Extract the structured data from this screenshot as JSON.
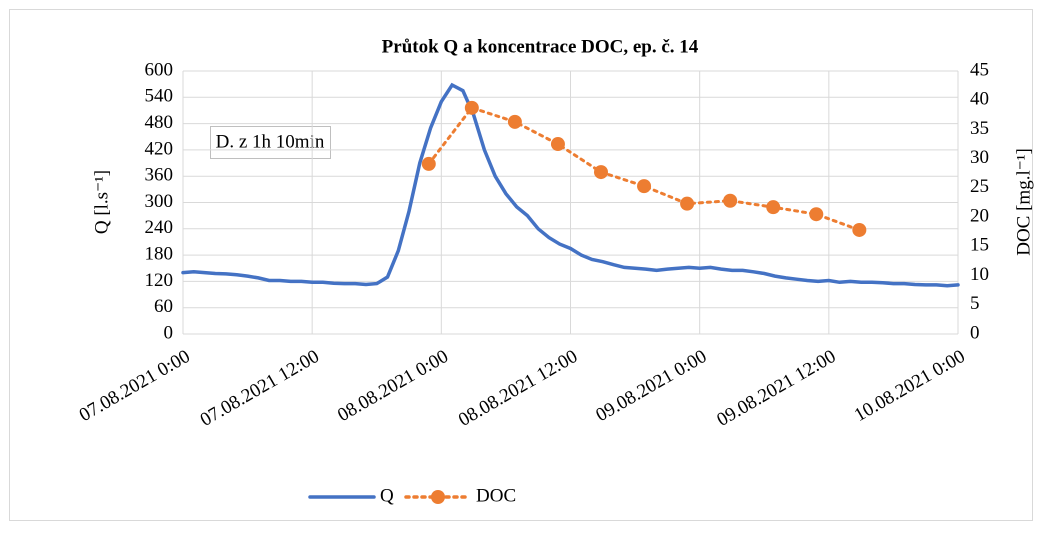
{
  "chart_data": {
    "type": "line",
    "title": "Průtok Q a koncentrace DOC, ep. č. 14",
    "annotation": "D. z 1h 10min",
    "y_label": "Q [l.s⁻¹]",
    "y2_label": "DOC [mg.l⁻¹]",
    "xlim": [
      "2021-08-07T00:00",
      "2021-08-10T00:00"
    ],
    "xticks": [
      {
        "value": "2021-08-07T00:00",
        "label": "07.08.2021 0:00"
      },
      {
        "value": "2021-08-07T12:00",
        "label": "07.08.2021 12:00"
      },
      {
        "value": "2021-08-08T00:00",
        "label": "08.08.2021 0:00"
      },
      {
        "value": "2021-08-08T12:00",
        "label": "08.08.2021 12:00"
      },
      {
        "value": "2021-08-09T00:00",
        "label": "09.08.2021 0:00"
      },
      {
        "value": "2021-08-09T12:00",
        "label": "09.08.2021 12:00"
      },
      {
        "value": "2021-08-10T00:00",
        "label": "10.08.2021 0:00"
      }
    ],
    "ylim": [
      0,
      600
    ],
    "yticks": [
      0,
      60,
      120,
      180,
      240,
      300,
      360,
      420,
      480,
      540,
      600
    ],
    "y2lim": [
      0,
      45
    ],
    "y2ticks": [
      0,
      5,
      10,
      15,
      20,
      25,
      30,
      35,
      40,
      45
    ],
    "grid": true,
    "legend": "bottom",
    "series": [
      {
        "name": "Q",
        "color": "#4472c4",
        "style": "solid",
        "axis": "y",
        "x": [
          "2021-08-07T00:00",
          "2021-08-07T01:00",
          "2021-08-07T02:00",
          "2021-08-07T03:00",
          "2021-08-07T04:00",
          "2021-08-07T05:00",
          "2021-08-07T06:00",
          "2021-08-07T07:00",
          "2021-08-07T08:00",
          "2021-08-07T09:00",
          "2021-08-07T10:00",
          "2021-08-07T11:00",
          "2021-08-07T12:00",
          "2021-08-07T13:00",
          "2021-08-07T14:00",
          "2021-08-07T15:00",
          "2021-08-07T16:00",
          "2021-08-07T17:00",
          "2021-08-07T18:00",
          "2021-08-07T19:00",
          "2021-08-07T20:00",
          "2021-08-07T21:00",
          "2021-08-07T22:00",
          "2021-08-07T23:00",
          "2021-08-08T00:00",
          "2021-08-08T01:00",
          "2021-08-08T02:00",
          "2021-08-08T03:00",
          "2021-08-08T04:00",
          "2021-08-08T05:00",
          "2021-08-08T06:00",
          "2021-08-08T07:00",
          "2021-08-08T08:00",
          "2021-08-08T09:00",
          "2021-08-08T10:00",
          "2021-08-08T11:00",
          "2021-08-08T12:00",
          "2021-08-08T13:00",
          "2021-08-08T14:00",
          "2021-08-08T15:00",
          "2021-08-08T16:00",
          "2021-08-08T17:00",
          "2021-08-08T18:00",
          "2021-08-08T19:00",
          "2021-08-08T20:00",
          "2021-08-08T21:00",
          "2021-08-08T22:00",
          "2021-08-08T23:00",
          "2021-08-09T00:00",
          "2021-08-09T01:00",
          "2021-08-09T02:00",
          "2021-08-09T03:00",
          "2021-08-09T04:00",
          "2021-08-09T05:00",
          "2021-08-09T06:00",
          "2021-08-09T07:00",
          "2021-08-09T08:00",
          "2021-08-09T09:00",
          "2021-08-09T10:00",
          "2021-08-09T11:00",
          "2021-08-09T12:00",
          "2021-08-09T13:00",
          "2021-08-09T14:00",
          "2021-08-09T15:00",
          "2021-08-09T16:00",
          "2021-08-09T17:00",
          "2021-08-09T18:00",
          "2021-08-09T19:00",
          "2021-08-09T20:00",
          "2021-08-09T21:00",
          "2021-08-09T22:00",
          "2021-08-09T23:00",
          "2021-08-10T00:00"
        ],
        "values": [
          140,
          142,
          140,
          138,
          137,
          135,
          132,
          128,
          122,
          122,
          120,
          120,
          118,
          118,
          116,
          115,
          115,
          113,
          115,
          130,
          190,
          280,
          390,
          470,
          530,
          568,
          555,
          500,
          420,
          360,
          320,
          290,
          270,
          240,
          220,
          205,
          195,
          180,
          170,
          165,
          158,
          152,
          150,
          148,
          145,
          148,
          150,
          152,
          150,
          152,
          148,
          145,
          145,
          142,
          138,
          132,
          128,
          125,
          122,
          120,
          122,
          118,
          120,
          118,
          118,
          117,
          115,
          115,
          113,
          112,
          112,
          110,
          112
        ]
      },
      {
        "name": "DOC",
        "color": "#ed7d31",
        "style": "dotted",
        "axis": "y2",
        "x": [
          "2021-08-07T22:50",
          "2021-08-08T02:50",
          "2021-08-08T06:50",
          "2021-08-08T10:50",
          "2021-08-08T14:50",
          "2021-08-08T18:50",
          "2021-08-08T22:50",
          "2021-08-09T02:50",
          "2021-08-09T06:50",
          "2021-08-09T10:50",
          "2021-08-09T14:50"
        ],
        "values": [
          29.1,
          38.7,
          36.3,
          32.5,
          27.7,
          25.3,
          22.3,
          22.8,
          21.7,
          20.5,
          17.8
        ]
      }
    ]
  }
}
